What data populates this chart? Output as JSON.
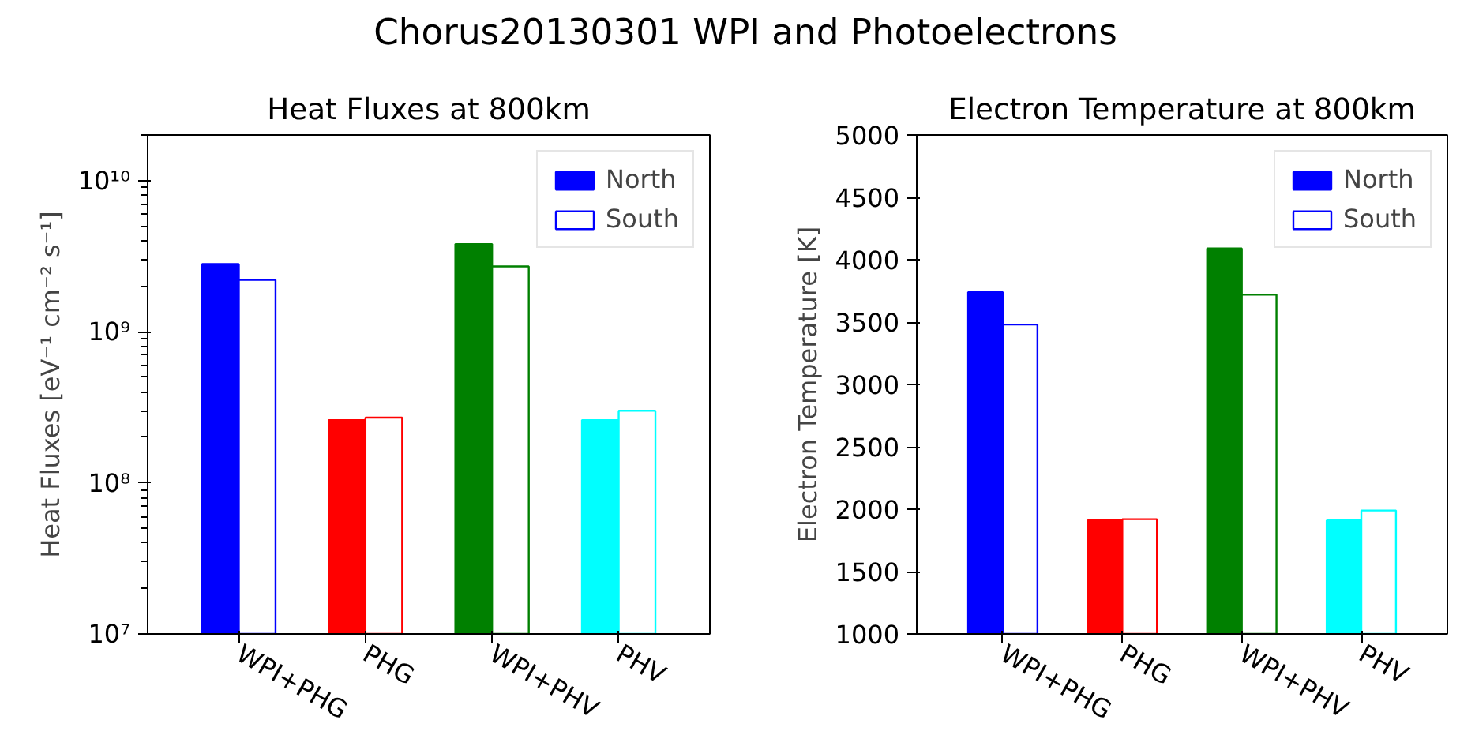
{
  "chart_data": [
    {
      "type": "bar",
      "title": "Heat Fluxes at 800km",
      "ylabel": "Heat Fluxes [eV⁻¹ cm⁻² s⁻¹]",
      "annotations": [
        "Chorus20130301 WPI and Photoelectrons"
      ],
      "categories": [
        "WPI+PHG",
        "PHG",
        "WPI+PHV",
        "PHV"
      ],
      "colors": [
        "#0000ff",
        "#ff0000",
        "#008000",
        "#00ffff"
      ],
      "log": "y",
      "ylim": [
        10000000.0,
        20000000000.0
      ],
      "yticks": [
        {
          "value": 10000000.0,
          "label": "10⁷"
        },
        {
          "value": 100000000.0,
          "label": "10⁸"
        },
        {
          "value": 1000000000.0,
          "label": "10⁹"
        },
        {
          "value": 10000000000.0,
          "label": "10¹⁰"
        }
      ],
      "grid": false,
      "legend": "top right",
      "series": [
        {
          "name": "North",
          "colors": [
            "#0000ff",
            "#ff0000",
            "#008000",
            "#00ffff"
          ],
          "values": [
            2800000000.0,
            260000000.0,
            3800000000.0,
            260000000.0
          ]
        },
        {
          "name": "South",
          "colors": [
            "#ffffff",
            "#ffffff",
            "#ffffff",
            "#ffffff"
          ],
          "values": [
            2200000000.0,
            270000000.0,
            2700000000.0,
            300000000.0
          ]
        }
      ]
    },
    {
      "type": "bar",
      "title": "Electron Temperature at 800km",
      "ylabel": "Electron Temperature [K]",
      "categories": [
        "WPI+PHG",
        "PHG",
        "WPI+PHV",
        "PHV"
      ],
      "colors": [
        "#0000ff",
        "#ff0000",
        "#008000",
        "#00ffff"
      ],
      "ylim": [
        1000,
        5000
      ],
      "yticks": [
        1000,
        1500,
        2000,
        2500,
        3000,
        3500,
        4000,
        4500,
        5000
      ],
      "grid": false,
      "legend": "top right",
      "series": [
        {
          "name": "North",
          "colors": [
            "#0000ff",
            "#ff0000",
            "#008000",
            "#00ffff"
          ],
          "values": [
            3740,
            1910,
            4090,
            1910
          ]
        },
        {
          "name": "South",
          "colors": [
            "#ffffff",
            "#ffffff",
            "#ffffff",
            "#ffffff"
          ],
          "values": [
            3480,
            1920,
            3720,
            1990
          ]
        }
      ]
    }
  ]
}
